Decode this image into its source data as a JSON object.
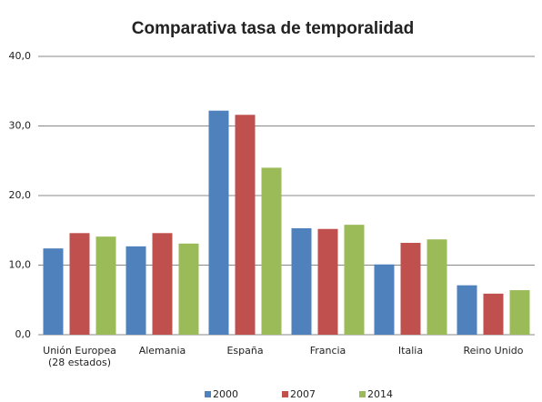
{
  "chart_data": {
    "type": "bar",
    "title": "Comparativa tasa de temporalidad",
    "categories": [
      "Unión Europea (28 estados)",
      "Alemania",
      "España",
      "Francia",
      "Italia",
      "Reino Unido"
    ],
    "series": [
      {
        "name": "2000",
        "color": "#4f81bd",
        "values": [
          12.4,
          12.7,
          32.2,
          15.3,
          10.1,
          7.1
        ]
      },
      {
        "name": "2007",
        "color": "#c0504d",
        "values": [
          14.6,
          14.6,
          31.6,
          15.2,
          13.2,
          5.9
        ]
      },
      {
        "name": "2014",
        "color": "#9bbb59",
        "values": [
          14.1,
          13.1,
          24.0,
          15.8,
          13.7,
          6.4
        ]
      }
    ],
    "ylim": [
      0,
      40
    ],
    "yticks": [
      {
        "value": 0,
        "label": "0,0"
      },
      {
        "value": 10,
        "label": "10,0"
      },
      {
        "value": 20,
        "label": "20,0"
      },
      {
        "value": 30,
        "label": "30,0"
      },
      {
        "value": 40,
        "label": "40,0"
      }
    ],
    "grid": true,
    "legend": "bottom"
  }
}
